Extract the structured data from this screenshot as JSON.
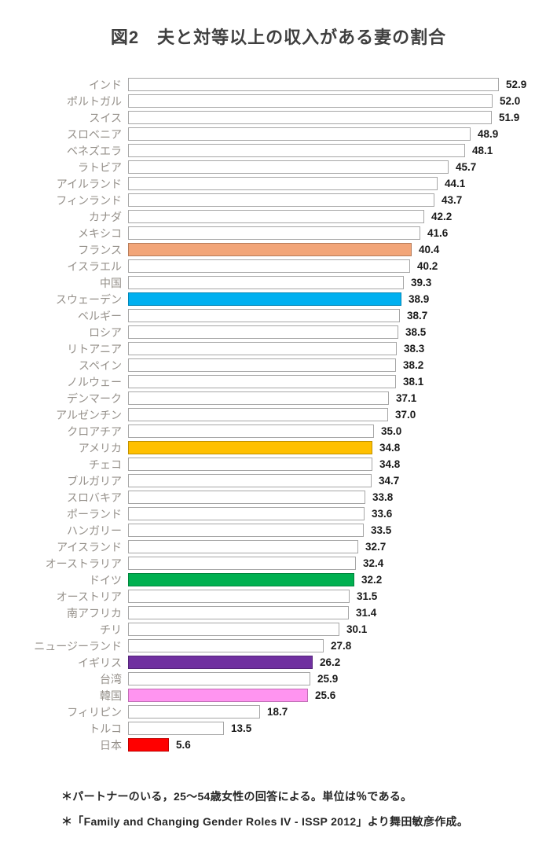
{
  "title": "図2　夫と対等以上の収入がある妻の割合",
  "notes": [
    "＊パートナーのいる，25～54歳女性の回答による。単位は％である。",
    "＊「Family and Changing Gender Roles IV - ISSP 2012」より舞田敏彦作成。"
  ],
  "colors": {
    "default_bar_fill": "#FFFFFF",
    "default_bar_border": "#A6A6A6",
    "label_text": "#95908A",
    "value_text": "#1A1A1A",
    "title_text": "#3F3F3F",
    "highlight_france": "#F2A578",
    "highlight_sweden": "#00B0F0",
    "highlight_usa": "#FFC000",
    "highlight_germany": "#00B050",
    "highlight_uk": "#7030A0",
    "highlight_korea": "#FF94F0",
    "highlight_japan": "#FF0000"
  },
  "chart_data": {
    "type": "bar",
    "orientation": "horizontal",
    "title": "図2　夫と対等以上の収入がある妻の割合",
    "unit": "%",
    "xlabel": "",
    "ylabel": "",
    "xlim": [
      0,
      55
    ],
    "grid": false,
    "legend": false,
    "value_labels": "outside-end",
    "categories": [
      "インド",
      "ポルトガル",
      "スイス",
      "スロベニア",
      "ベネズエラ",
      "ラトビア",
      "アイルランド",
      "フィンランド",
      "カナダ",
      "メキシコ",
      "フランス",
      "イスラエル",
      "中国",
      "スウェーデン",
      "ベルギー",
      "ロシア",
      "リトアニア",
      "スペイン",
      "ノルウェー",
      "デンマーク",
      "アルゼンチン",
      "クロアチア",
      "アメリカ",
      "チェコ",
      "ブルガリア",
      "スロバキア",
      "ポーランド",
      "ハンガリー",
      "アイスランド",
      "オーストラリア",
      "ドイツ",
      "オーストリア",
      "南アフリカ",
      "チリ",
      "ニュージーランド",
      "イギリス",
      "台湾",
      "韓国",
      "フィリピン",
      "トルコ",
      "日本"
    ],
    "values": [
      52.9,
      52.0,
      51.9,
      48.9,
      48.1,
      45.7,
      44.1,
      43.7,
      42.2,
      41.6,
      40.4,
      40.2,
      39.3,
      38.9,
      38.7,
      38.5,
      38.3,
      38.2,
      38.1,
      37.1,
      37.0,
      35.0,
      34.8,
      34.8,
      34.7,
      33.8,
      33.6,
      33.5,
      32.7,
      32.4,
      32.2,
      31.5,
      31.4,
      30.1,
      27.8,
      26.2,
      25.9,
      25.6,
      18.7,
      13.5,
      5.6
    ],
    "bar_colors": [
      "#FFFFFF",
      "#FFFFFF",
      "#FFFFFF",
      "#FFFFFF",
      "#FFFFFF",
      "#FFFFFF",
      "#FFFFFF",
      "#FFFFFF",
      "#FFFFFF",
      "#FFFFFF",
      "#F2A578",
      "#FFFFFF",
      "#FFFFFF",
      "#00B0F0",
      "#FFFFFF",
      "#FFFFFF",
      "#FFFFFF",
      "#FFFFFF",
      "#FFFFFF",
      "#FFFFFF",
      "#FFFFFF",
      "#FFFFFF",
      "#FFC000",
      "#FFFFFF",
      "#FFFFFF",
      "#FFFFFF",
      "#FFFFFF",
      "#FFFFFF",
      "#FFFFFF",
      "#FFFFFF",
      "#00B050",
      "#FFFFFF",
      "#FFFFFF",
      "#FFFFFF",
      "#FFFFFF",
      "#7030A0",
      "#FFFFFF",
      "#FF94F0",
      "#FFFFFF",
      "#FFFFFF",
      "#FF0000"
    ]
  }
}
